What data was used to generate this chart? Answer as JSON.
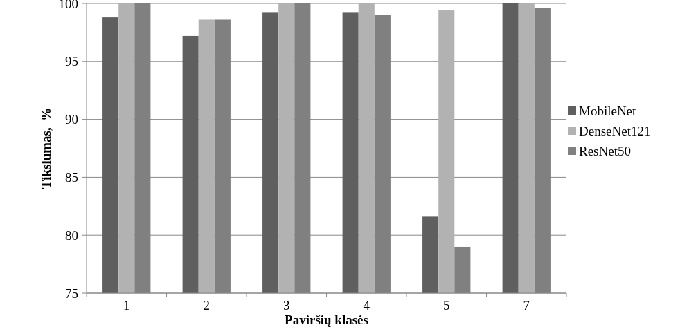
{
  "chart_data": {
    "type": "bar",
    "xlabel": "Paviršių klasės",
    "ylabel": "Tikslumas,  %",
    "categories": [
      "1",
      "2",
      "3",
      "4",
      "5",
      "7"
    ],
    "series": [
      {
        "name": "MobileNet",
        "color": "#5f5f5f",
        "values": [
          98.8,
          97.2,
          99.2,
          99.2,
          81.6,
          100
        ]
      },
      {
        "name": "DenseNet121",
        "color": "#b2b2b2",
        "values": [
          100,
          98.6,
          100,
          100,
          99.4,
          100
        ]
      },
      {
        "name": "ResNet50",
        "color": "#808080",
        "values": [
          100,
          98.6,
          100,
          99.0,
          79.0,
          99.6
        ]
      }
    ],
    "ylim": [
      75,
      100
    ],
    "yticks": [
      75,
      80,
      85,
      90,
      95,
      100
    ],
    "grid": "y",
    "legend": "right"
  }
}
